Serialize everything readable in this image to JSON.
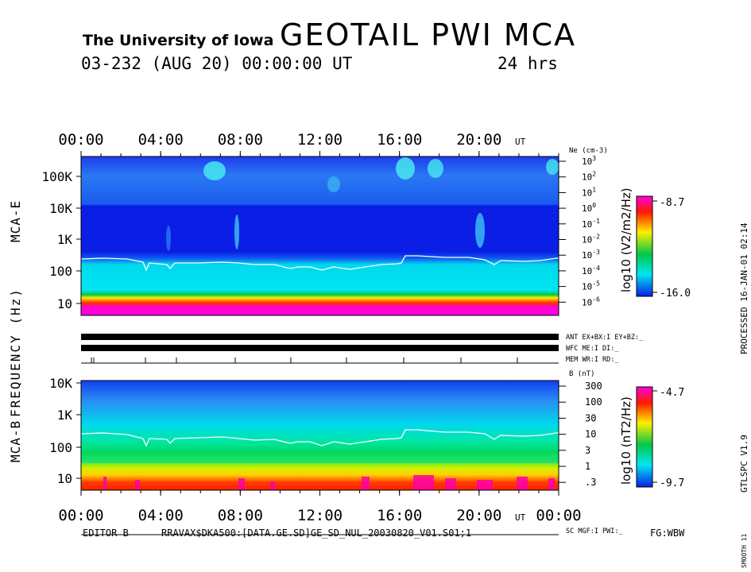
{
  "header": {
    "institution": "The University of Iowa",
    "title": "GEOTAIL PWI MCA",
    "date_line": "03-232 (AUG 20) 00:00:00 UT",
    "time_span": "24 hrs"
  },
  "side_labels": {
    "processed": "PROCESSED 16-JAN-01 02:14",
    "software": "GTLSPC V1.9",
    "smooth": "SMOOTH 11",
    "frequency_axis": "FREQUENCY (Hz)",
    "mca_e": "MCA-E",
    "mca_b": "MCA-B"
  },
  "footer": {
    "editor": "EDITOR B",
    "file_path": "RRAVAX$DKA500:[DATA.GE.SD]GE_SD_NUL_20030820_V01.S01;1",
    "fg": "FG:WBW"
  },
  "status_rows": {
    "ant": "ANT EX+BX:I EY+BZ:_",
    "wfc": "WFC ME:I   DI:_",
    "mem": "MEM WR:I   RD:_",
    "sc": "SC MGF:I   PWI:_"
  },
  "chart_data": [
    {
      "type": "heatmap",
      "name": "MCA-E",
      "xlabel": "UT",
      "x_ticks": [
        "00:00",
        "04:00",
        "08:00",
        "12:00",
        "16:00",
        "20:00"
      ],
      "ylabel": "FREQUENCY (Hz)",
      "yscale": "log",
      "y_ticks": [
        "10",
        "100",
        "1K",
        "10K",
        "100K"
      ],
      "right_axis_label": "Ne (cm-3)",
      "right_axis_ticks": [
        "10^3",
        "10^2",
        "10^1",
        "10^0",
        "10^-1",
        "10^-2",
        "10^-3",
        "10^-4",
        "10^-5",
        "10^-6"
      ],
      "colorbar_label": "log10 (V2/m2/Hz)",
      "colorbar_range": [
        -16.0,
        -8.7
      ],
      "colorbar_max_label": "-8.7",
      "colorbar_min_label": "-16.0",
      "trace": "electron plasma frequency (white line)"
    },
    {
      "type": "heatmap",
      "name": "MCA-B",
      "xlabel": "UT",
      "x_ticks": [
        "00:00",
        "04:00",
        "08:00",
        "12:00",
        "16:00",
        "20:00",
        "00:00"
      ],
      "yscale": "log",
      "y_ticks": [
        "10",
        "100",
        "1K",
        "10K"
      ],
      "right_axis_label": "B (nT)",
      "right_axis_ticks": [
        "300",
        "100",
        "30",
        "10",
        "3",
        "1",
        ".3"
      ],
      "colorbar_label": "log10 (nT2/Hz)",
      "colorbar_range": [
        -9.7,
        -4.7
      ],
      "colorbar_max_label": "-4.7",
      "colorbar_min_label": "-9.7"
    }
  ],
  "colors": {
    "background": "#ffffff",
    "deep_blue": "#0a1ee6",
    "cyan": "#00e6f0",
    "green": "#00c84a",
    "yellow": "#ffee00",
    "red": "#ff1a00",
    "magenta": "#ff00d8"
  }
}
